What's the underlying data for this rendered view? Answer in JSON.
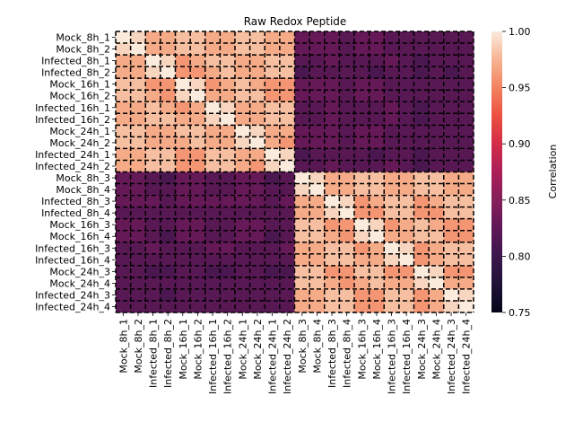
{
  "chart_data": {
    "type": "heatmap",
    "title": "Raw Redox Peptide",
    "xlabel": "",
    "ylabel": "",
    "labels": [
      "Mock_8h_1",
      "Mock_8h_2",
      "Infected_8h_1",
      "Infected_8h_2",
      "Mock_16h_1",
      "Mock_16h_2",
      "Infected_16h_1",
      "Infected_16h_2",
      "Mock_24h_1",
      "Mock_24h_2",
      "Infected_24h_1",
      "Infected_24h_2",
      "Mock_8h_3",
      "Mock_8h_4",
      "Infected_8h_3",
      "Infected_8h_4",
      "Mock_16h_3",
      "Mock_16h_4",
      "Infected_16h_3",
      "Infected_16h_4",
      "Mock_24h_3",
      "Mock_24h_4",
      "Infected_24h_3",
      "Infected_24h_4"
    ],
    "colorbar": {
      "label": "Correlation",
      "vmin": 0.75,
      "vmax": 1.0,
      "ticks": [
        0.75,
        0.8,
        0.85,
        0.9,
        0.95,
        1.0
      ],
      "tick_labels": [
        "0.75",
        "0.80",
        "0.85",
        "0.90",
        "0.95",
        "1.00"
      ],
      "colormap": "rocket"
    },
    "grid": "dashed black lines between every pair of samples",
    "values": [
      [
        1.0,
        0.99,
        0.97,
        0.97,
        0.98,
        0.98,
        0.97,
        0.97,
        0.98,
        0.98,
        0.97,
        0.97,
        0.83,
        0.83,
        0.83,
        0.82,
        0.83,
        0.83,
        0.82,
        0.82,
        0.82,
        0.82,
        0.82,
        0.82
      ],
      [
        0.99,
        1.0,
        0.97,
        0.97,
        0.98,
        0.98,
        0.97,
        0.97,
        0.98,
        0.98,
        0.97,
        0.97,
        0.83,
        0.83,
        0.83,
        0.82,
        0.83,
        0.83,
        0.82,
        0.82,
        0.82,
        0.82,
        0.82,
        0.82
      ],
      [
        0.97,
        0.97,
        1.0,
        0.99,
        0.96,
        0.97,
        0.98,
        0.98,
        0.97,
        0.97,
        0.98,
        0.98,
        0.82,
        0.82,
        0.83,
        0.82,
        0.82,
        0.82,
        0.83,
        0.82,
        0.81,
        0.82,
        0.82,
        0.82
      ],
      [
        0.97,
        0.97,
        0.99,
        1.0,
        0.96,
        0.96,
        0.97,
        0.98,
        0.97,
        0.97,
        0.98,
        0.98,
        0.81,
        0.82,
        0.82,
        0.82,
        0.82,
        0.81,
        0.82,
        0.82,
        0.81,
        0.82,
        0.81,
        0.82
      ],
      [
        0.98,
        0.98,
        0.96,
        0.96,
        1.0,
        0.99,
        0.96,
        0.97,
        0.98,
        0.97,
        0.96,
        0.96,
        0.83,
        0.83,
        0.83,
        0.82,
        0.83,
        0.83,
        0.82,
        0.82,
        0.82,
        0.82,
        0.82,
        0.82
      ],
      [
        0.98,
        0.98,
        0.97,
        0.96,
        0.99,
        1.0,
        0.97,
        0.97,
        0.98,
        0.98,
        0.96,
        0.96,
        0.83,
        0.83,
        0.83,
        0.82,
        0.83,
        0.83,
        0.82,
        0.82,
        0.82,
        0.82,
        0.82,
        0.82
      ],
      [
        0.97,
        0.97,
        0.98,
        0.97,
        0.96,
        0.97,
        1.0,
        0.99,
        0.97,
        0.97,
        0.98,
        0.98,
        0.82,
        0.82,
        0.83,
        0.82,
        0.82,
        0.82,
        0.83,
        0.82,
        0.81,
        0.82,
        0.82,
        0.82
      ],
      [
        0.97,
        0.97,
        0.98,
        0.98,
        0.97,
        0.97,
        0.99,
        1.0,
        0.97,
        0.97,
        0.98,
        0.98,
        0.82,
        0.82,
        0.83,
        0.82,
        0.82,
        0.82,
        0.83,
        0.82,
        0.81,
        0.82,
        0.82,
        0.82
      ],
      [
        0.98,
        0.98,
        0.97,
        0.97,
        0.98,
        0.98,
        0.97,
        0.97,
        1.0,
        0.99,
        0.97,
        0.97,
        0.83,
        0.83,
        0.83,
        0.82,
        0.83,
        0.83,
        0.82,
        0.82,
        0.82,
        0.82,
        0.82,
        0.82
      ],
      [
        0.98,
        0.98,
        0.97,
        0.97,
        0.97,
        0.98,
        0.97,
        0.97,
        0.99,
        1.0,
        0.97,
        0.96,
        0.83,
        0.83,
        0.83,
        0.82,
        0.83,
        0.83,
        0.82,
        0.82,
        0.82,
        0.82,
        0.82,
        0.82
      ],
      [
        0.97,
        0.97,
        0.98,
        0.98,
        0.96,
        0.96,
        0.98,
        0.98,
        0.97,
        0.97,
        1.0,
        0.99,
        0.81,
        0.82,
        0.82,
        0.82,
        0.82,
        0.81,
        0.82,
        0.82,
        0.81,
        0.82,
        0.82,
        0.82
      ],
      [
        0.97,
        0.97,
        0.98,
        0.98,
        0.96,
        0.96,
        0.98,
        0.98,
        0.97,
        0.96,
        0.99,
        1.0,
        0.82,
        0.82,
        0.83,
        0.82,
        0.82,
        0.82,
        0.83,
        0.82,
        0.81,
        0.82,
        0.82,
        0.82
      ],
      [
        0.83,
        0.83,
        0.82,
        0.81,
        0.83,
        0.83,
        0.82,
        0.82,
        0.83,
        0.83,
        0.81,
        0.82,
        1.0,
        0.99,
        0.97,
        0.97,
        0.98,
        0.98,
        0.97,
        0.97,
        0.98,
        0.98,
        0.97,
        0.97
      ],
      [
        0.83,
        0.83,
        0.82,
        0.82,
        0.83,
        0.83,
        0.82,
        0.82,
        0.83,
        0.83,
        0.82,
        0.82,
        0.99,
        1.0,
        0.97,
        0.97,
        0.98,
        0.98,
        0.97,
        0.97,
        0.98,
        0.98,
        0.97,
        0.97
      ],
      [
        0.83,
        0.83,
        0.83,
        0.82,
        0.83,
        0.83,
        0.83,
        0.83,
        0.83,
        0.83,
        0.82,
        0.83,
        0.97,
        0.97,
        1.0,
        0.99,
        0.96,
        0.97,
        0.98,
        0.98,
        0.96,
        0.97,
        0.98,
        0.98
      ],
      [
        0.82,
        0.82,
        0.82,
        0.82,
        0.82,
        0.82,
        0.82,
        0.82,
        0.82,
        0.82,
        0.82,
        0.82,
        0.97,
        0.97,
        0.99,
        1.0,
        0.96,
        0.96,
        0.98,
        0.98,
        0.96,
        0.96,
        0.98,
        0.98
      ],
      [
        0.83,
        0.83,
        0.82,
        0.82,
        0.83,
        0.83,
        0.82,
        0.82,
        0.83,
        0.83,
        0.82,
        0.82,
        0.98,
        0.98,
        0.96,
        0.96,
        1.0,
        0.99,
        0.96,
        0.97,
        0.98,
        0.97,
        0.96,
        0.96
      ],
      [
        0.83,
        0.83,
        0.82,
        0.81,
        0.83,
        0.83,
        0.82,
        0.82,
        0.83,
        0.83,
        0.81,
        0.82,
        0.98,
        0.98,
        0.97,
        0.96,
        0.99,
        1.0,
        0.97,
        0.97,
        0.98,
        0.98,
        0.96,
        0.96
      ],
      [
        0.82,
        0.82,
        0.83,
        0.82,
        0.82,
        0.82,
        0.83,
        0.83,
        0.82,
        0.82,
        0.82,
        0.83,
        0.97,
        0.97,
        0.98,
        0.98,
        0.96,
        0.97,
        1.0,
        0.99,
        0.96,
        0.97,
        0.98,
        0.98
      ],
      [
        0.82,
        0.82,
        0.82,
        0.82,
        0.82,
        0.82,
        0.82,
        0.82,
        0.82,
        0.82,
        0.82,
        0.82,
        0.97,
        0.97,
        0.98,
        0.98,
        0.97,
        0.97,
        0.99,
        1.0,
        0.96,
        0.97,
        0.98,
        0.98
      ],
      [
        0.82,
        0.82,
        0.81,
        0.81,
        0.82,
        0.82,
        0.81,
        0.81,
        0.82,
        0.82,
        0.81,
        0.81,
        0.98,
        0.98,
        0.96,
        0.96,
        0.98,
        0.98,
        0.96,
        0.96,
        1.0,
        0.99,
        0.96,
        0.96
      ],
      [
        0.82,
        0.82,
        0.82,
        0.82,
        0.82,
        0.82,
        0.82,
        0.82,
        0.82,
        0.82,
        0.82,
        0.82,
        0.98,
        0.98,
        0.97,
        0.96,
        0.97,
        0.98,
        0.97,
        0.97,
        0.99,
        1.0,
        0.97,
        0.97
      ],
      [
        0.82,
        0.82,
        0.82,
        0.81,
        0.82,
        0.82,
        0.82,
        0.82,
        0.82,
        0.82,
        0.82,
        0.82,
        0.97,
        0.97,
        0.98,
        0.98,
        0.96,
        0.96,
        0.98,
        0.98,
        0.96,
        0.97,
        1.0,
        0.99
      ],
      [
        0.82,
        0.82,
        0.82,
        0.82,
        0.82,
        0.82,
        0.82,
        0.82,
        0.82,
        0.82,
        0.82,
        0.82,
        0.97,
        0.97,
        0.98,
        0.98,
        0.96,
        0.96,
        0.98,
        0.98,
        0.96,
        0.97,
        0.99,
        1.0
      ]
    ]
  }
}
